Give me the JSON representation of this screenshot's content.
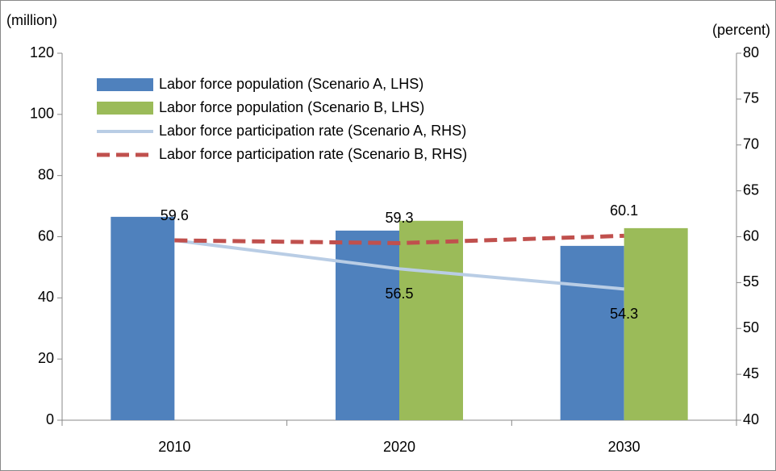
{
  "chart_data": {
    "type": "bar",
    "ylabel": "(million)",
    "y2label": "(percent)",
    "categories": [
      "2010",
      "2020",
      "2030"
    ],
    "ylim": [
      0,
      120
    ],
    "yticks": [
      0,
      20,
      40,
      60,
      80,
      100,
      120
    ],
    "y2lim": [
      40,
      80
    ],
    "y2ticks": [
      40,
      45,
      50,
      55,
      60,
      65,
      70,
      75,
      80
    ],
    "series": [
      {
        "name": "Labor force population (Scenario A, LHS)",
        "type": "bar",
        "color": "#4f81bd",
        "values": [
          66.5,
          62.0,
          57.0
        ]
      },
      {
        "name": "Labor force population (Scenario B, LHS)",
        "type": "bar",
        "color": "#9bbb59",
        "values": [
          null,
          65.2,
          62.8
        ]
      },
      {
        "name": "Labor force participation rate (Scenario A, RHS)",
        "type": "line",
        "axis": "y2",
        "color": "#b9cde5",
        "dash": false,
        "values": [
          59.6,
          56.5,
          54.3
        ],
        "value_labels": [
          null,
          "56.5",
          "54.3"
        ],
        "label_position": "below"
      },
      {
        "name": "Labor force participation rate (Scenario B, RHS)",
        "type": "line",
        "axis": "y2",
        "color": "#c0504d",
        "dash": true,
        "values": [
          59.6,
          59.3,
          60.1
        ],
        "value_labels": [
          "59.6",
          "59.3",
          "60.1"
        ],
        "label_position": "above"
      }
    ]
  }
}
